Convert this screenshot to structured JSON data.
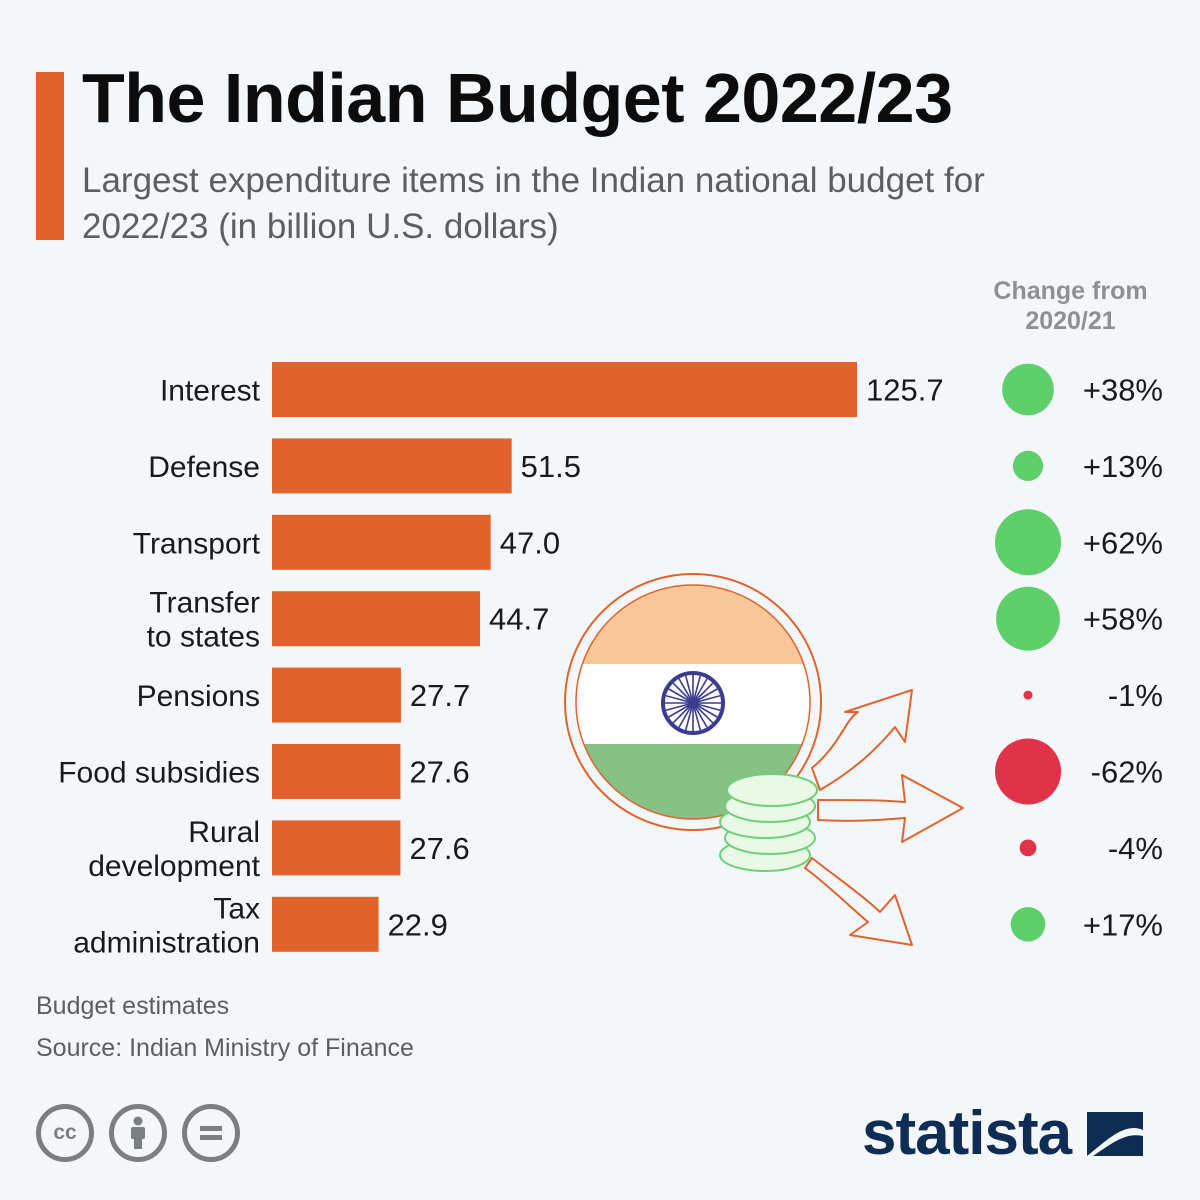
{
  "title": "The Indian Budget 2022/23",
  "subtitle": "Largest expenditure items in the Indian national budget for 2022/23 (in billion U.S. dollars)",
  "change_header": "Change from 2020/21",
  "notes": [
    "Budget estimates",
    "Source: Indian Ministry of Finance"
  ],
  "logo": "statista",
  "icons": [
    "cc-icon",
    "attribution-icon",
    "no-derivatives-icon",
    "india-flag-icon",
    "coins-icon",
    "arrow-icon",
    "statista-logo-icon"
  ],
  "colors": {
    "bar": "#e2622c",
    "positive": "#5ecf6a",
    "negative": "#e0334a",
    "accent": "#e2622c"
  },
  "chart_data": {
    "type": "bar",
    "orientation": "horizontal",
    "categories": [
      "Interest",
      "Defense",
      "Transport",
      "Transfer to states",
      "Pensions",
      "Food subsidies",
      "Rural development",
      "Tax administration"
    ],
    "category_lines": [
      [
        "Interest"
      ],
      [
        "Defense"
      ],
      [
        "Transport"
      ],
      [
        "Transfer",
        "to states"
      ],
      [
        "Pensions"
      ],
      [
        "Food subsidies"
      ],
      [
        "Rural",
        "development"
      ],
      [
        "Tax",
        "administration"
      ]
    ],
    "values": [
      125.7,
      51.5,
      47.0,
      44.7,
      27.7,
      27.6,
      27.6,
      22.9
    ],
    "value_labels": [
      "125.7",
      "51.5",
      "47.0",
      "44.7",
      "27.7",
      "27.6",
      "27.6",
      "22.9"
    ],
    "change_pct": [
      38,
      13,
      62,
      58,
      -1,
      -62,
      -4,
      17
    ],
    "change_labels": [
      "+38%",
      "+13%",
      "+62%",
      "+58%",
      "-1%",
      "-62%",
      "-4%",
      "+17%"
    ],
    "unit": "billion U.S. dollars",
    "xlim": [
      0,
      125.7
    ],
    "grid": false,
    "legend": "none"
  }
}
